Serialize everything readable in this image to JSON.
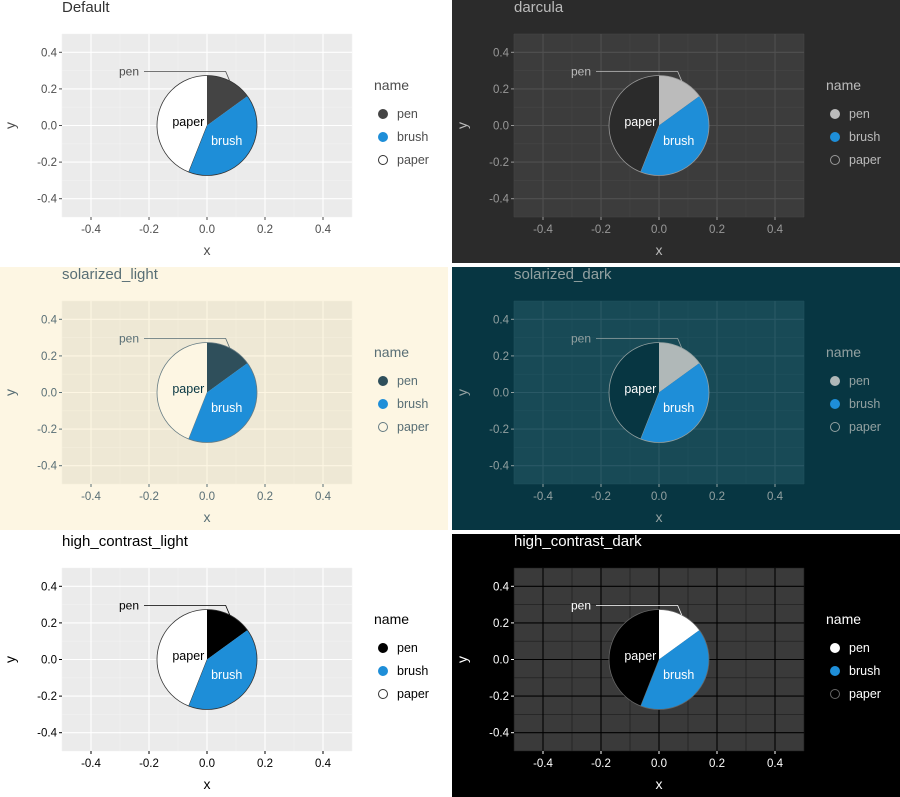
{
  "chart_data": [
    {
      "type": "pie",
      "title": "Default",
      "xlabel": "x",
      "ylabel": "y",
      "xlim": [
        -0.5,
        0.5
      ],
      "ylim": [
        -0.5,
        0.5
      ],
      "x_ticks": [
        "-0.4",
        "-0.2",
        "0.0",
        "0.2",
        "0.4"
      ],
      "y_ticks": [
        "0.4",
        "0.2",
        "0.0",
        "-0.2",
        "-0.4"
      ],
      "categories": [
        "pen",
        "brush",
        "paper"
      ],
      "values": [
        15,
        41,
        44
      ],
      "legend_title": "name",
      "legend_position": "right",
      "grid": true,
      "colors": {
        "page_bg": "#ffffff",
        "plot_bg": "#ebebeb",
        "grid_major": "#ffffff",
        "grid_minor": "#f2f2f2",
        "text": "#4d4d4d",
        "tick_text": "#4d4d4d",
        "title_text": "#333333",
        "pie_outline": "#333333",
        "slice_text": "#000000",
        "slice_pen": "#444444",
        "slice_brush": "#1E8ED8",
        "slice_paper": "#ffffff"
      }
    },
    {
      "type": "pie",
      "title": "darcula",
      "xlabel": "x",
      "ylabel": "y",
      "xlim": [
        -0.5,
        0.5
      ],
      "ylim": [
        -0.5,
        0.5
      ],
      "x_ticks": [
        "-0.4",
        "-0.2",
        "0.0",
        "0.2",
        "0.4"
      ],
      "y_ticks": [
        "0.4",
        "0.2",
        "0.0",
        "-0.2",
        "-0.4"
      ],
      "categories": [
        "pen",
        "brush",
        "paper"
      ],
      "values": [
        15,
        41,
        44
      ],
      "legend_title": "name",
      "legend_position": "right",
      "grid": true,
      "colors": {
        "page_bg": "#2b2b2b",
        "plot_bg": "#3c3c3c",
        "grid_major": "#505050",
        "grid_minor": "#464646",
        "text": "#bbbbbb",
        "tick_text": "#999999",
        "title_text": "#bbbbbb",
        "pie_outline": "#999999",
        "slice_text": "#ffffff",
        "slice_pen": "#bbbbbb",
        "slice_brush": "#1E8ED8",
        "slice_paper": "#2b2b2b"
      }
    },
    {
      "type": "pie",
      "title": "solarized_light",
      "xlabel": "x",
      "ylabel": "y",
      "xlim": [
        -0.5,
        0.5
      ],
      "ylim": [
        -0.5,
        0.5
      ],
      "x_ticks": [
        "-0.4",
        "-0.2",
        "0.0",
        "0.2",
        "0.4"
      ],
      "y_ticks": [
        "0.4",
        "0.2",
        "0.0",
        "-0.2",
        "-0.4"
      ],
      "categories": [
        "pen",
        "brush",
        "paper"
      ],
      "values": [
        15,
        41,
        44
      ],
      "legend_title": "name",
      "legend_position": "right",
      "grid": true,
      "colors": {
        "page_bg": "#fdf6e3",
        "plot_bg": "#eee8d5",
        "grid_major": "#fdf6e3",
        "grid_minor": "#f5efdc",
        "text": "#586e75",
        "tick_text": "#586e75",
        "title_text": "#586e75",
        "pie_outline": "#657b83",
        "slice_text": "#073642",
        "slice_pen": "#2f4f5b",
        "slice_brush": "#1E8ED8",
        "slice_paper": "#fdf6e3"
      }
    },
    {
      "type": "pie",
      "title": "solarized_dark",
      "xlabel": "x",
      "ylabel": "y",
      "xlim": [
        -0.5,
        0.5
      ],
      "ylim": [
        -0.5,
        0.5
      ],
      "x_ticks": [
        "-0.4",
        "-0.2",
        "0.0",
        "0.2",
        "0.4"
      ],
      "y_ticks": [
        "0.4",
        "0.2",
        "0.0",
        "-0.2",
        "-0.4"
      ],
      "categories": [
        "pen",
        "brush",
        "paper"
      ],
      "values": [
        15,
        41,
        44
      ],
      "legend_title": "name",
      "legend_position": "right",
      "grid": true,
      "colors": {
        "page_bg": "#073642",
        "plot_bg": "#184a56",
        "grid_major": "#2a5966",
        "grid_minor": "#20515d",
        "text": "#93a1a1",
        "tick_text": "#93a1a1",
        "title_text": "#93a1a1",
        "pie_outline": "#93a1a1",
        "slice_text": "#ffffff",
        "slice_pen": "#b0b8b8",
        "slice_brush": "#1E8ED8",
        "slice_paper": "#073642"
      }
    },
    {
      "type": "pie",
      "title": "high_contrast_light",
      "xlabel": "x",
      "ylabel": "y",
      "xlim": [
        -0.5,
        0.5
      ],
      "ylim": [
        -0.5,
        0.5
      ],
      "x_ticks": [
        "-0.4",
        "-0.2",
        "0.0",
        "0.2",
        "0.4"
      ],
      "y_ticks": [
        "0.4",
        "0.2",
        "0.0",
        "-0.2",
        "-0.4"
      ],
      "categories": [
        "pen",
        "brush",
        "paper"
      ],
      "values": [
        15,
        41,
        44
      ],
      "legend_title": "name",
      "legend_position": "right",
      "grid": true,
      "colors": {
        "page_bg": "#ffffff",
        "plot_bg": "#ebebeb",
        "grid_major": "#ffffff",
        "grid_minor": "#f2f2f2",
        "text": "#000000",
        "tick_text": "#000000",
        "title_text": "#000000",
        "pie_outline": "#333333",
        "slice_text": "#000000",
        "slice_pen": "#000000",
        "slice_brush": "#1E8ED8",
        "slice_paper": "#ffffff"
      }
    },
    {
      "type": "pie",
      "title": "high_contrast_dark",
      "xlabel": "x",
      "ylabel": "y",
      "xlim": [
        -0.5,
        0.5
      ],
      "ylim": [
        -0.5,
        0.5
      ],
      "x_ticks": [
        "-0.4",
        "-0.2",
        "0.0",
        "0.2",
        "0.4"
      ],
      "y_ticks": [
        "0.4",
        "0.2",
        "0.0",
        "-0.2",
        "-0.4"
      ],
      "categories": [
        "pen",
        "brush",
        "paper"
      ],
      "values": [
        15,
        41,
        44
      ],
      "legend_title": "name",
      "legend_position": "right",
      "grid": true,
      "colors": {
        "page_bg": "#000000",
        "plot_bg": "#3a3a3a",
        "grid_major": "#000000",
        "grid_minor": "#1c1c1c",
        "text": "#ffffff",
        "tick_text": "#ffffff",
        "title_text": "#ffffff",
        "pie_outline": "#666666",
        "slice_text": "#ffffff",
        "slice_pen": "#ffffff",
        "slice_brush": "#1E8ED8",
        "slice_paper": "#000000"
      }
    }
  ]
}
